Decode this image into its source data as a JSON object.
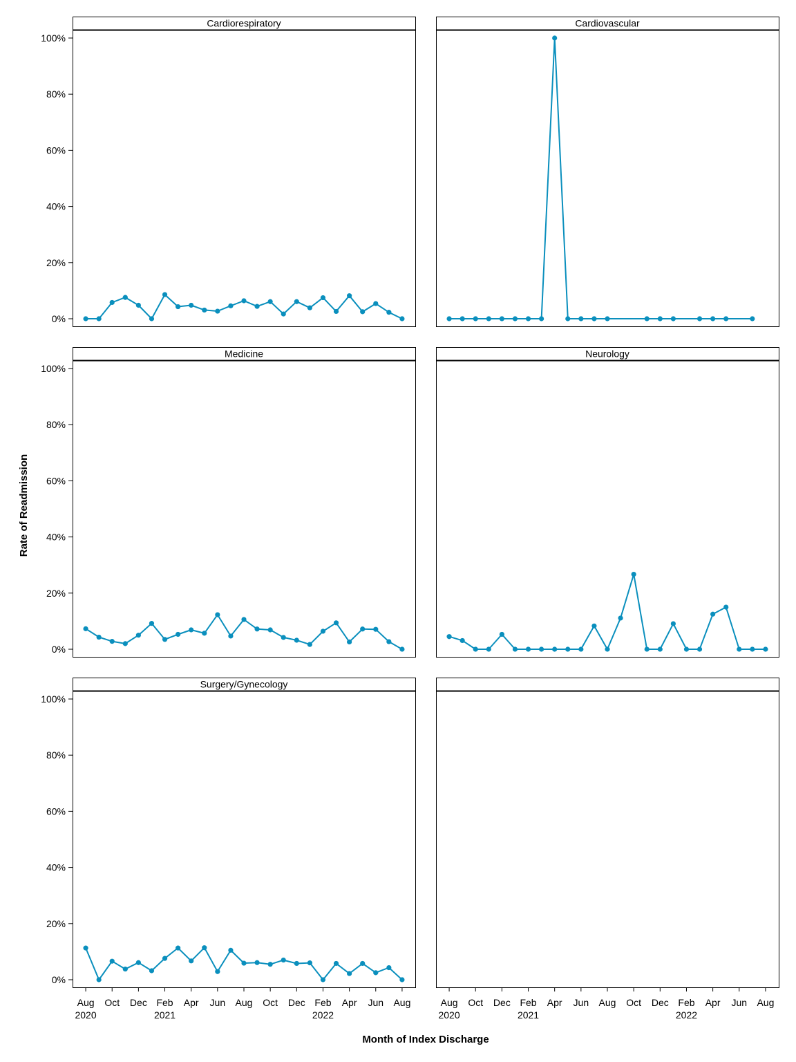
{
  "chart_data": {
    "type": "line",
    "layout": "facet-grid",
    "xlabel": "Month of Index Discharge",
    "ylabel": "Rate of Readmission",
    "ylim": [
      0,
      100
    ],
    "y_ticks": [
      {
        "value": 0,
        "label": "0%"
      },
      {
        "value": 20,
        "label": "20%"
      },
      {
        "value": 40,
        "label": "40%"
      },
      {
        "value": 60,
        "label": "60%"
      },
      {
        "value": 80,
        "label": "80%"
      },
      {
        "value": 100,
        "label": "100%"
      }
    ],
    "xlim": [
      "2020-07",
      "2022-09"
    ],
    "x_ticks": [
      {
        "value": "2020-08",
        "label": "Aug",
        "year": "2020"
      },
      {
        "value": "2020-10",
        "label": "Oct",
        "year": ""
      },
      {
        "value": "2020-12",
        "label": "Dec",
        "year": ""
      },
      {
        "value": "2021-02",
        "label": "Feb",
        "year": "2021"
      },
      {
        "value": "2021-04",
        "label": "Apr",
        "year": ""
      },
      {
        "value": "2021-06",
        "label": "Jun",
        "year": ""
      },
      {
        "value": "2021-08",
        "label": "Aug",
        "year": ""
      },
      {
        "value": "2021-10",
        "label": "Oct",
        "year": ""
      },
      {
        "value": "2021-12",
        "label": "Dec",
        "year": ""
      },
      {
        "value": "2022-02",
        "label": "Feb",
        "year": "2022"
      },
      {
        "value": "2022-04",
        "label": "Apr",
        "year": ""
      },
      {
        "value": "2022-06",
        "label": "Jun",
        "year": ""
      },
      {
        "value": "2022-08",
        "label": "Aug",
        "year": ""
      }
    ],
    "line_color": "#0a8fbd",
    "panels": [
      {
        "title": "Cardiorespiratory",
        "x": [
          "2020-08",
          "2020-09",
          "2020-10",
          "2020-11",
          "2020-12",
          "2021-01",
          "2021-02",
          "2021-03",
          "2021-04",
          "2021-05",
          "2021-06",
          "2021-07",
          "2021-08",
          "2021-09",
          "2021-10",
          "2021-11",
          "2021-12",
          "2022-01",
          "2022-02",
          "2022-03",
          "2022-04",
          "2022-05",
          "2022-06",
          "2022-07",
          "2022-08"
        ],
        "y": [
          0,
          0,
          5.8,
          7.6,
          4.8,
          0,
          8.6,
          4.3,
          4.8,
          3.1,
          2.7,
          4.6,
          6.4,
          4.4,
          6.1,
          1.7,
          6.1,
          3.9,
          7.5,
          2.6,
          8.2,
          2.5,
          5.4,
          2.3,
          0
        ]
      },
      {
        "title": "Cardiovascular",
        "x": [
          "2020-08",
          "2020-09",
          "2020-10",
          "2020-11",
          "2020-12",
          "2021-01",
          "2021-02",
          "2021-03",
          "2021-04",
          "2021-05",
          "2021-06",
          "2021-07",
          "2021-08",
          "2021-11",
          "2021-12",
          "2022-01",
          "2022-03",
          "2022-04",
          "2022-05",
          "2022-07"
        ],
        "y": [
          0,
          0,
          0,
          0,
          0,
          0,
          0,
          0,
          100,
          0,
          0,
          0,
          0,
          0,
          0,
          0,
          0,
          0,
          0,
          0
        ]
      },
      {
        "title": "Medicine",
        "x": [
          "2020-08",
          "2020-09",
          "2020-10",
          "2020-11",
          "2020-12",
          "2021-01",
          "2021-02",
          "2021-03",
          "2021-04",
          "2021-05",
          "2021-06",
          "2021-07",
          "2021-08",
          "2021-09",
          "2021-10",
          "2021-11",
          "2021-12",
          "2022-01",
          "2022-02",
          "2022-03",
          "2022-04",
          "2022-05",
          "2022-06",
          "2022-07",
          "2022-08"
        ],
        "y": [
          7.3,
          4.3,
          2.8,
          2.0,
          5.0,
          9.2,
          3.5,
          5.3,
          6.9,
          5.7,
          12.3,
          4.7,
          10.6,
          7.2,
          6.9,
          4.2,
          3.2,
          1.7,
          6.4,
          9.4,
          2.6,
          7.2,
          7.1,
          2.7,
          0
        ]
      },
      {
        "title": "Neurology",
        "x": [
          "2020-08",
          "2020-09",
          "2020-10",
          "2020-11",
          "2020-12",
          "2021-01",
          "2021-02",
          "2021-03",
          "2021-04",
          "2021-05",
          "2021-06",
          "2021-07",
          "2021-08",
          "2021-09",
          "2021-10",
          "2021-11",
          "2021-12",
          "2022-01",
          "2022-02",
          "2022-03",
          "2022-04",
          "2022-05",
          "2022-06",
          "2022-07",
          "2022-08"
        ],
        "y": [
          4.5,
          3.1,
          0,
          0,
          5.3,
          0,
          0,
          0,
          0,
          0,
          0,
          8.3,
          0,
          11.1,
          26.7,
          0,
          0,
          9.1,
          0,
          0,
          12.5,
          15.0,
          0,
          0,
          0
        ]
      },
      {
        "title": "Surgery/Gynecology",
        "x": [
          "2020-08",
          "2020-09",
          "2020-10",
          "2020-11",
          "2020-12",
          "2021-01",
          "2021-02",
          "2021-03",
          "2021-04",
          "2021-05",
          "2021-06",
          "2021-07",
          "2021-08",
          "2021-09",
          "2021-10",
          "2021-11",
          "2021-12",
          "2022-01",
          "2022-02",
          "2022-03",
          "2022-04",
          "2022-05",
          "2022-06",
          "2022-07",
          "2022-08"
        ],
        "y": [
          11.3,
          0,
          6.6,
          3.8,
          6.1,
          3.2,
          7.6,
          11.3,
          6.7,
          11.4,
          2.9,
          10.5,
          5.9,
          6.1,
          5.5,
          7.0,
          5.8,
          6.0,
          0,
          5.8,
          2.2,
          5.8,
          2.5,
          4.3,
          0
        ]
      },
      {
        "title": "",
        "x": [],
        "y": []
      }
    ]
  }
}
